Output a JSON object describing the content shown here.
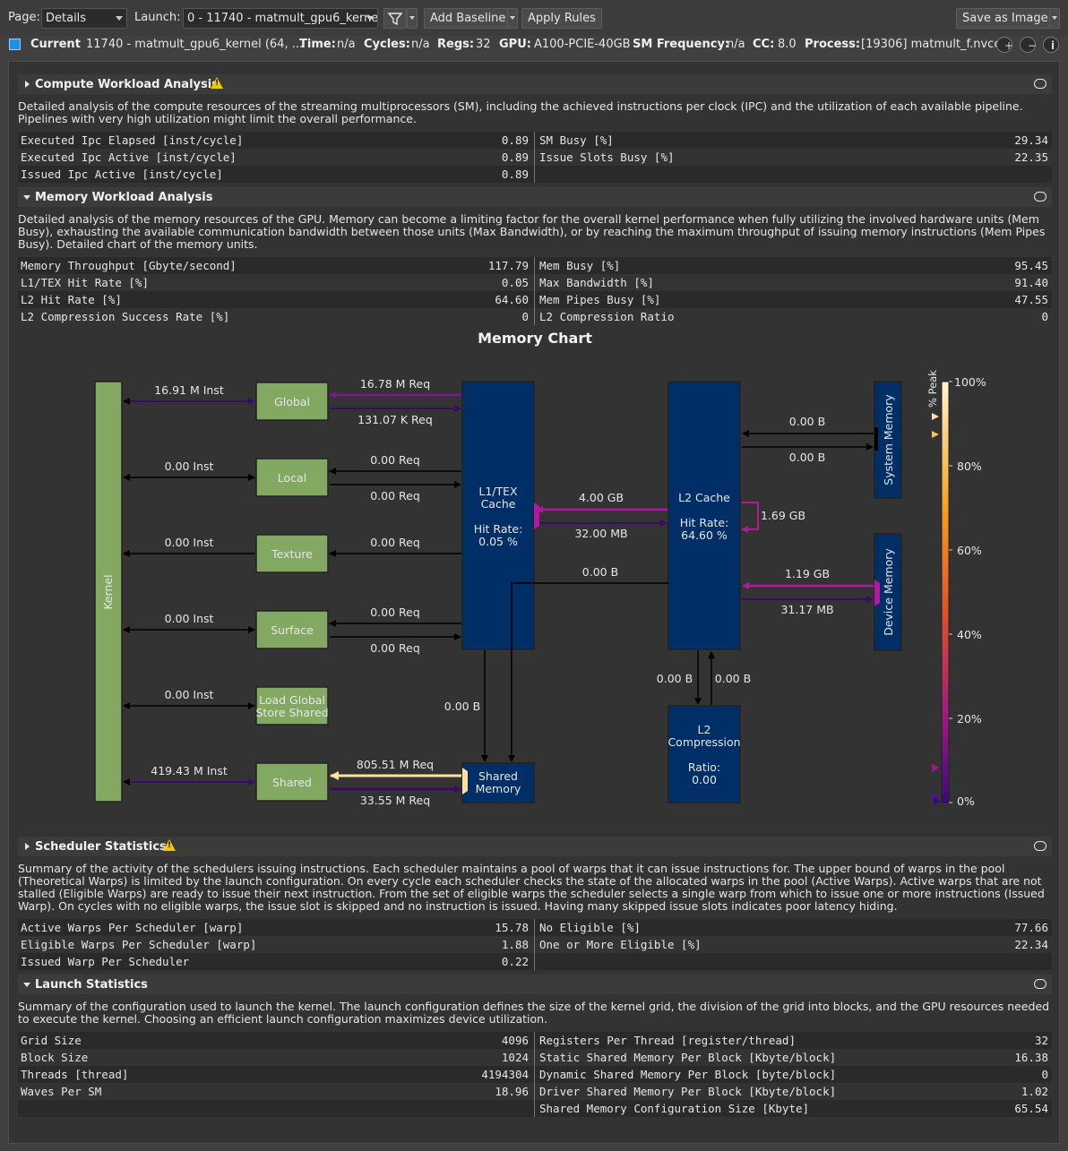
{
  "toolbar": {
    "page_label": "Page:",
    "page_value": "Details",
    "launch_label": "Launch:",
    "launch_value": "0 - 11740 - matmult_gpu6_kerne",
    "add_baseline": "Add Baseline",
    "apply_rules": "Apply Rules",
    "save_image": "Save as Image"
  },
  "info": {
    "current_label": "Current",
    "current_value": "11740 - matmult_gpu6_kernel (64, ...",
    "time_label": "Time:",
    "time_value": "n/a",
    "cycles_label": "Cycles:",
    "cycles_value": "n/a",
    "regs_label": "Regs:",
    "regs_value": "32",
    "gpu_label": "GPU:",
    "gpu_value": "A100-PCIE-40GB",
    "smf_label": "SM Frequency:",
    "smf_value": "n/a",
    "cc_label": "CC:",
    "cc_value": "8.0",
    "process_label": "Process:",
    "process_value": "[19306] matmult_f.nvcc",
    "swatch_color": "#1e90e6"
  },
  "compute": {
    "title": "Compute Workload Analysis",
    "desc": "Detailed analysis of the compute resources of the streaming multiprocessors (SM), including the achieved instructions per clock (IPC) and the utilization of each available pipeline. Pipelines with very high utilization might limit the overall performance.",
    "rows": [
      {
        "l_name": "Executed Ipc Elapsed [inst/cycle]",
        "l_val": "0.89",
        "r_name": "SM Busy [%]",
        "r_val": "29.34"
      },
      {
        "l_name": "Executed Ipc Active [inst/cycle]",
        "l_val": "0.89",
        "r_name": "Issue Slots Busy [%]",
        "r_val": "22.35"
      },
      {
        "l_name": "Issued Ipc Active [inst/cycle]",
        "l_val": "0.89",
        "r_name": "",
        "r_val": ""
      }
    ]
  },
  "memory": {
    "title": "Memory Workload Analysis",
    "desc": "Detailed analysis of the memory resources of the GPU. Memory can become a limiting factor for the overall kernel performance when fully utilizing the involved hardware units (Mem Busy), exhausting the available communication bandwidth between those units (Max Bandwidth), or by reaching the maximum throughput of issuing memory instructions (Mem Pipes Busy). Detailed chart of the memory units.",
    "rows": [
      {
        "l_name": "Memory Throughput [Gbyte/second]",
        "l_val": "117.79",
        "r_name": "Mem Busy [%]",
        "r_val": "95.45"
      },
      {
        "l_name": "L1/TEX Hit Rate [%]",
        "l_val": "0.05",
        "r_name": "Max Bandwidth [%]",
        "r_val": "91.40"
      },
      {
        "l_name": "L2 Hit Rate [%]",
        "l_val": "64.60",
        "r_name": "Mem Pipes Busy [%]",
        "r_val": "47.55"
      },
      {
        "l_name": "L2 Compression Success Rate [%]",
        "l_val": "0",
        "r_name": "L2 Compression Ratio",
        "r_val": "0"
      }
    ],
    "chart_title": "Memory Chart"
  },
  "memchart": {
    "kernel": "Kernel",
    "global": "Global",
    "local": "Local",
    "texture": "Texture",
    "surface": "Surface",
    "lgs_1": "Load Global",
    "lgs_2": "Store Shared",
    "shared": "Shared",
    "l1_1": "L1/TEX",
    "l1_2": "Cache",
    "l1_3": "Hit Rate:",
    "l1_4": "0.05 %",
    "l2_1": "L2 Cache",
    "l2_2": "Hit Rate:",
    "l2_3": "64.60 %",
    "sysmem": "System Memory",
    "devmem": "Device Memory",
    "l2c_1": "L2",
    "l2c_2": "Compression",
    "l2c_3": "Ratio:",
    "l2c_4": "0.00",
    "shmem_1": "Shared",
    "shmem_2": "Memory",
    "global_inst": "16.91 M Inst",
    "local_inst": "0.00 Inst",
    "texture_inst": "0.00 Inst",
    "surface_inst": "0.00 Inst",
    "lgs_inst": "0.00 Inst",
    "shared_inst": "419.43 M Inst",
    "global_req_top": "16.78 M Req",
    "global_req_bot": "131.07 K Req",
    "local_req_top": "0.00 Req",
    "local_req_bot": "0.00 Req",
    "texture_req": "0.00 Req",
    "surface_req_top": "0.00 Req",
    "surface_req_bot": "0.00 Req",
    "shared_req_top": "805.51 M Req",
    "shared_req_bot": "33.55 M Req",
    "l1_l2_top": "4.00 GB",
    "l1_l2_bot": "32.00 MB",
    "l2_self": "1.69 GB",
    "l2_shm": "0.00 B",
    "l1_shm": "0.00 B",
    "sys_top": "0.00 B",
    "sys_bot": "0.00 B",
    "dev_top": "1.19 GB",
    "dev_bot": "31.17 MB",
    "l2c_left": "0.00 B",
    "l2c_right": "0.00 B",
    "scale_100": "100%",
    "scale_80": "80%",
    "scale_60": "60%",
    "scale_40": "40%",
    "scale_20": "20%",
    "scale_0": "0%",
    "peak": "% Peak"
  },
  "scheduler": {
    "title": "Scheduler Statistics",
    "desc": "Summary of the activity of the schedulers issuing instructions. Each scheduler maintains a pool of warps that it can issue instructions for. The upper bound of warps in the pool (Theoretical Warps) is limited by the launch configuration. On every cycle each scheduler checks the state of the allocated warps in the pool (Active Warps). Active warps that are not stalled (Eligible Warps) are ready to issue their next instruction. From the set of eligible warps the scheduler selects a single warp from which to issue one or more instructions (Issued Warp). On cycles with no eligible warps, the issue slot is skipped and no instruction is issued. Having many skipped issue slots indicates poor latency hiding.",
    "rows": [
      {
        "l_name": "Active Warps Per Scheduler [warp]",
        "l_val": "15.78",
        "r_name": "No Eligible [%]",
        "r_val": "77.66"
      },
      {
        "l_name": "Eligible Warps Per Scheduler [warp]",
        "l_val": "1.88",
        "r_name": "One or More Eligible [%]",
        "r_val": "22.34"
      },
      {
        "l_name": "Issued Warp Per Scheduler",
        "l_val": "0.22",
        "r_name": "",
        "r_val": ""
      }
    ]
  },
  "launch": {
    "title": "Launch Statistics",
    "desc": "Summary of the configuration used to launch the kernel. The launch configuration defines the size of the kernel grid, the division of the grid into blocks, and the GPU resources needed to execute the kernel. Choosing an efficient launch configuration maximizes device utilization.",
    "rows": [
      {
        "l_name": "Grid Size",
        "l_val": "4096",
        "r_name": "Registers Per Thread [register/thread]",
        "r_val": "32"
      },
      {
        "l_name": "Block Size",
        "l_val": "1024",
        "r_name": "Static Shared Memory Per Block [Kbyte/block]",
        "r_val": "16.38"
      },
      {
        "l_name": "Threads [thread]",
        "l_val": "4194304",
        "r_name": "Dynamic Shared Memory Per Block [byte/block]",
        "r_val": "0"
      },
      {
        "l_name": "Waves Per SM",
        "l_val": "18.96",
        "r_name": "Driver Shared Memory Per Block [Kbyte/block]",
        "r_val": "1.02"
      },
      {
        "l_name": "",
        "l_val": "",
        "r_name": "Shared Memory Configuration Size [Kbyte]",
        "r_val": "65.54"
      }
    ]
  }
}
